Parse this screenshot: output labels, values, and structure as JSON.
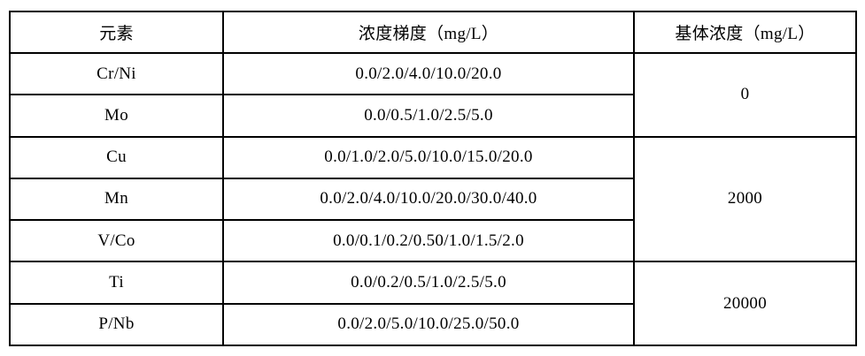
{
  "colors": {
    "background": "#ffffff",
    "border": "#000000",
    "text": "#000000"
  },
  "table": {
    "headers": {
      "element": "元素",
      "gradient": "浓度梯度（mg/L）",
      "matrix": "基体浓度（mg/L）"
    },
    "rows": [
      {
        "element": "Cr/Ni",
        "gradient": "0.0/2.0/4.0/10.0/20.0"
      },
      {
        "element": "Mo",
        "gradient": "0.0/0.5/1.0/2.5/5.0"
      },
      {
        "element": "Cu",
        "gradient": "0.0/1.0/2.0/5.0/10.0/15.0/20.0"
      },
      {
        "element": "Mn",
        "gradient": "0.0/2.0/4.0/10.0/20.0/30.0/40.0"
      },
      {
        "element": "V/Co",
        "gradient": "0.0/0.1/0.2/0.50/1.0/1.5/2.0"
      },
      {
        "element": "Ti",
        "gradient": "0.0/0.2/0.5/1.0/2.5/5.0"
      },
      {
        "element": "P/Nb",
        "gradient": "0.0/2.0/5.0/10.0/25.0/50.0"
      }
    ],
    "matrix_groups": [
      {
        "value": "0",
        "rowspan": 2,
        "applies_to": [
          "Cr/Ni",
          "Mo"
        ]
      },
      {
        "value": "2000",
        "rowspan": 3,
        "applies_to": [
          "Cu",
          "Mn",
          "V/Co"
        ]
      },
      {
        "value": "20000",
        "rowspan": 2,
        "applies_to": [
          "Ti",
          "P/Nb"
        ]
      }
    ]
  }
}
